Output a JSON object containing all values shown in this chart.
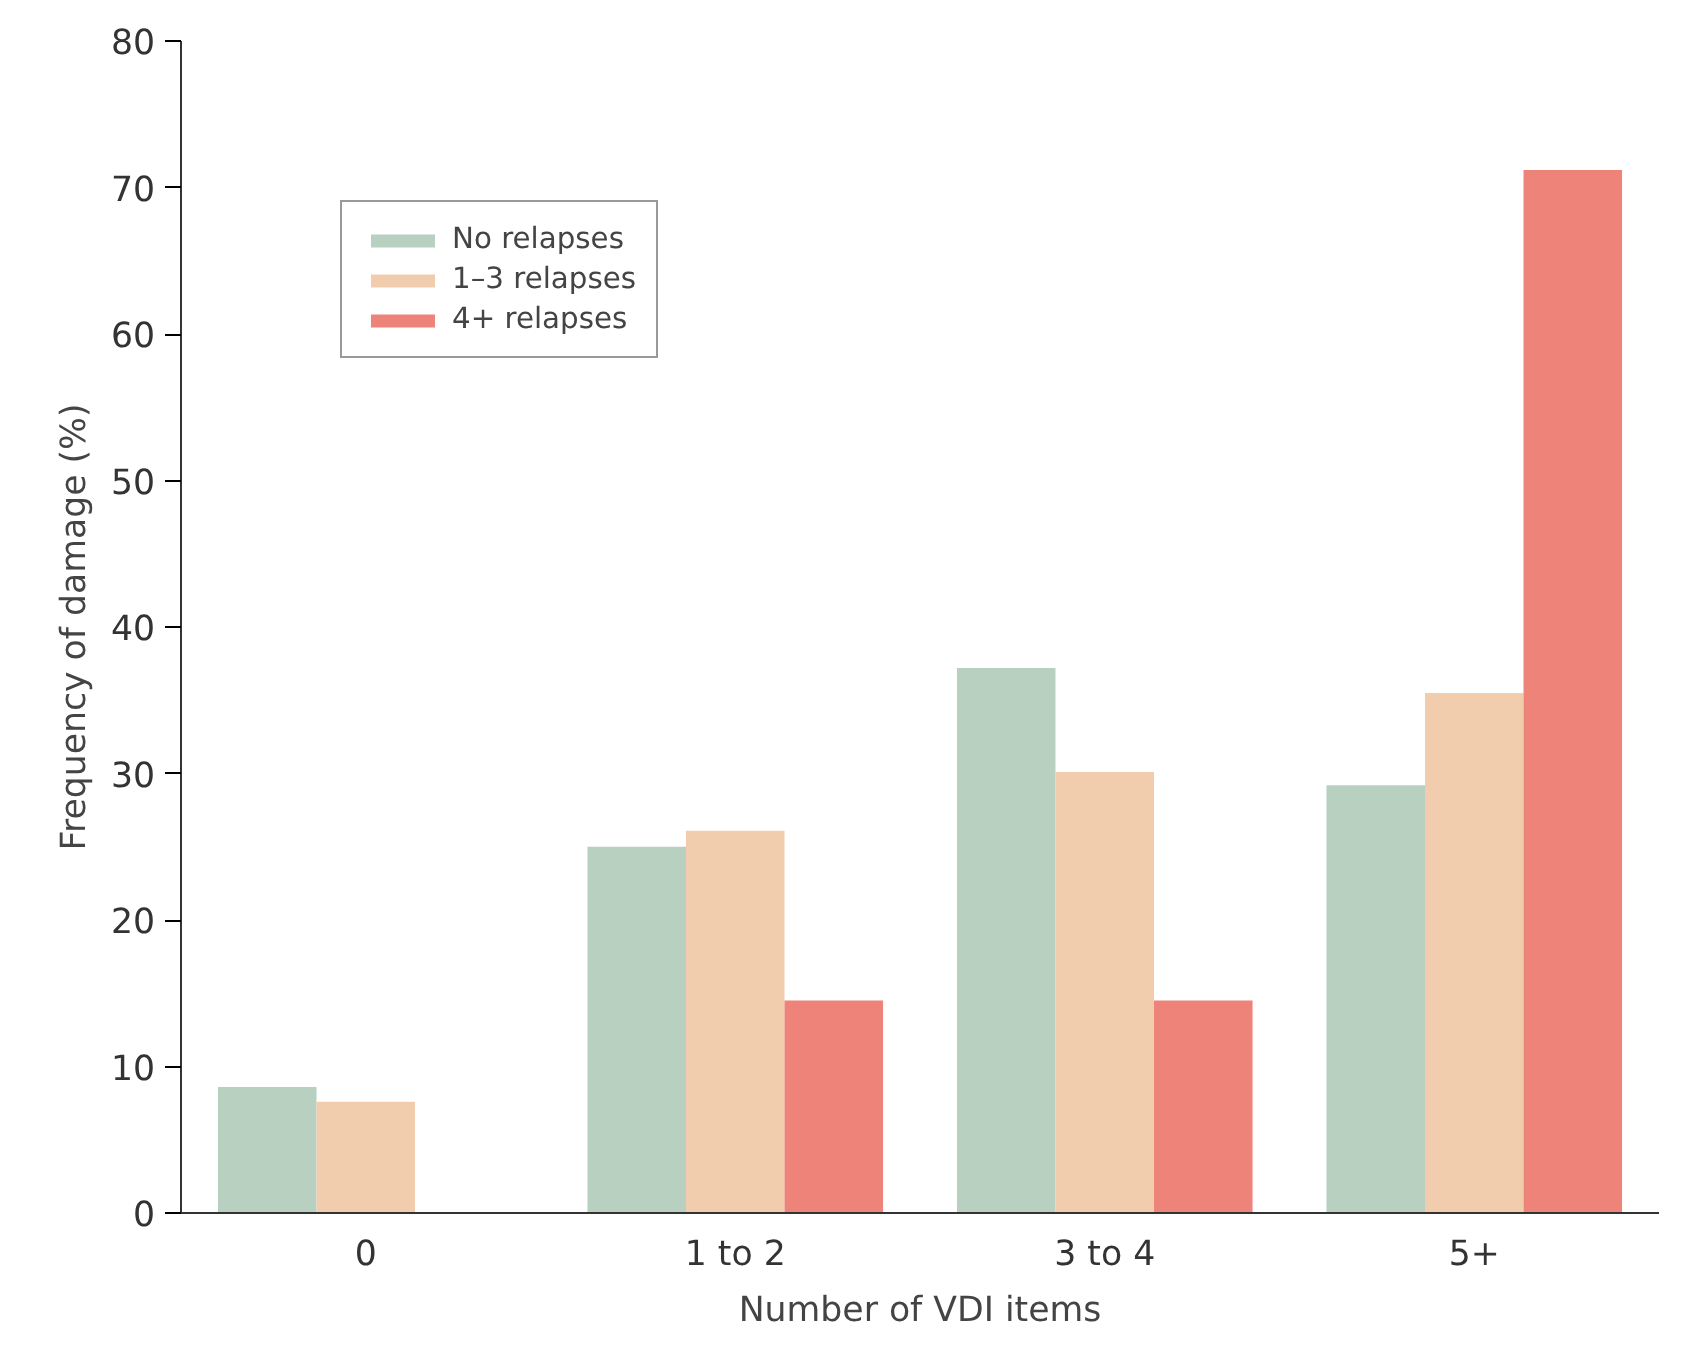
{
  "chart_data": {
    "type": "bar",
    "xlabel": "Number of VDI items",
    "ylabel": "Frequency of damage (%)",
    "categories": [
      "0",
      "1 to 2",
      "3 to 4",
      "5+"
    ],
    "series": [
      {
        "name": "No relapses",
        "color": "#b7d0c0",
        "values": [
          8.6,
          25.0,
          37.2,
          29.2
        ]
      },
      {
        "name": "1–3 relapses",
        "color": "#f2cdad",
        "values": [
          7.6,
          26.1,
          30.1,
          35.5
        ]
      },
      {
        "name": "4+ relapses",
        "color": "#ee837a",
        "values": [
          null,
          14.5,
          14.5,
          71.2
        ]
      }
    ],
    "ylim": [
      0,
      80
    ],
    "yticks": [
      0,
      10,
      20,
      30,
      40,
      50,
      60,
      70,
      80
    ],
    "grid": false,
    "legend": "top left"
  }
}
